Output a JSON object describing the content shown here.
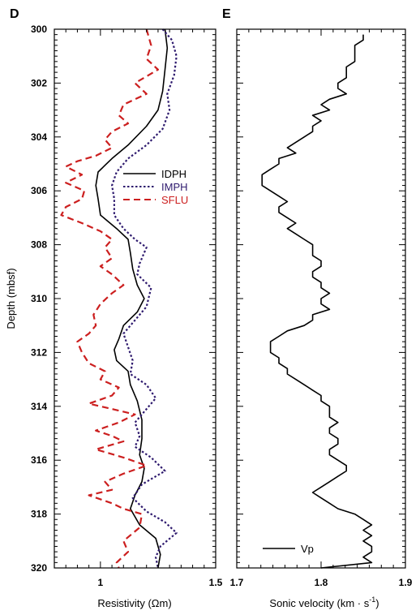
{
  "chart_data": [
    {
      "type": "line",
      "panel_label": "D",
      "xlabel": "Resistivity (Ωm)",
      "ylabel": "Depth (mbsf)",
      "xlim": [
        0.8,
        1.5
      ],
      "ylim": [
        300,
        320
      ],
      "y_inverted": true,
      "x_ticks": [
        1,
        1.5
      ],
      "y_ticks": [
        300,
        302,
        304,
        306,
        308,
        310,
        312,
        314,
        316,
        318,
        320
      ],
      "grid": false,
      "legend_position": "upper-right",
      "series": [
        {
          "name": "IDPH",
          "color": "#000000",
          "style": "solid",
          "points": [
            [
              1.28,
              300.0
            ],
            [
              1.29,
              300.7
            ],
            [
              1.28,
              301.5
            ],
            [
              1.27,
              302.3
            ],
            [
              1.25,
              303.0
            ],
            [
              1.2,
              303.6
            ],
            [
              1.12,
              304.3
            ],
            [
              1.05,
              304.8
            ],
            [
              0.99,
              305.3
            ],
            [
              0.98,
              305.8
            ],
            [
              0.99,
              306.3
            ],
            [
              1.0,
              306.9
            ],
            [
              1.07,
              307.4
            ],
            [
              1.12,
              307.8
            ],
            [
              1.13,
              308.3
            ],
            [
              1.14,
              308.9
            ],
            [
              1.16,
              309.5
            ],
            [
              1.19,
              310.0
            ],
            [
              1.16,
              310.5
            ],
            [
              1.1,
              311.0
            ],
            [
              1.08,
              311.5
            ],
            [
              1.06,
              311.9
            ],
            [
              1.07,
              312.3
            ],
            [
              1.12,
              312.7
            ],
            [
              1.13,
              313.2
            ],
            [
              1.16,
              313.8
            ],
            [
              1.18,
              314.5
            ],
            [
              1.18,
              315.2
            ],
            [
              1.17,
              315.8
            ],
            [
              1.19,
              316.3
            ],
            [
              1.18,
              316.8
            ],
            [
              1.15,
              317.3
            ],
            [
              1.13,
              317.8
            ],
            [
              1.17,
              318.4
            ],
            [
              1.24,
              318.9
            ],
            [
              1.26,
              319.5
            ],
            [
              1.25,
              320.0
            ]
          ]
        },
        {
          "name": "IMPH",
          "color": "#2e1a6e",
          "style": "dotted",
          "points": [
            [
              1.27,
              300.0
            ],
            [
              1.31,
              300.4
            ],
            [
              1.33,
              301.0
            ],
            [
              1.32,
              301.7
            ],
            [
              1.29,
              302.4
            ],
            [
              1.3,
              303.0
            ],
            [
              1.27,
              303.7
            ],
            [
              1.2,
              304.3
            ],
            [
              1.12,
              304.8
            ],
            [
              1.07,
              305.3
            ],
            [
              1.05,
              305.8
            ],
            [
              1.06,
              306.3
            ],
            [
              1.06,
              306.9
            ],
            [
              1.1,
              307.4
            ],
            [
              1.15,
              307.8
            ],
            [
              1.2,
              308.1
            ],
            [
              1.17,
              308.7
            ],
            [
              1.16,
              309.1
            ],
            [
              1.22,
              309.6
            ],
            [
              1.2,
              310.3
            ],
            [
              1.15,
              310.8
            ],
            [
              1.1,
              311.3
            ],
            [
              1.12,
              311.8
            ],
            [
              1.14,
              312.3
            ],
            [
              1.13,
              312.8
            ],
            [
              1.2,
              313.2
            ],
            [
              1.24,
              313.7
            ],
            [
              1.2,
              314.1
            ],
            [
              1.15,
              314.6
            ],
            [
              1.17,
              315.1
            ],
            [
              1.15,
              315.5
            ],
            [
              1.22,
              315.9
            ],
            [
              1.28,
              316.4
            ],
            [
              1.18,
              316.9
            ],
            [
              1.14,
              317.4
            ],
            [
              1.2,
              317.9
            ],
            [
              1.28,
              318.3
            ],
            [
              1.33,
              318.7
            ],
            [
              1.26,
              319.2
            ],
            [
              1.24,
              319.6
            ],
            [
              1.25,
              320.0
            ]
          ]
        },
        {
          "name": "SFLU",
          "color": "#cc1f1f",
          "style": "dashed",
          "points": [
            [
              1.2,
              300.0
            ],
            [
              1.22,
              300.6
            ],
            [
              1.2,
              301.1
            ],
            [
              1.25,
              301.5
            ],
            [
              1.15,
              302.0
            ],
            [
              1.2,
              302.4
            ],
            [
              1.1,
              302.8
            ],
            [
              1.08,
              303.2
            ],
            [
              1.12,
              303.5
            ],
            [
              1.05,
              303.8
            ],
            [
              1.02,
              304.1
            ],
            [
              1.05,
              304.4
            ],
            [
              0.98,
              304.7
            ],
            [
              0.9,
              304.9
            ],
            [
              0.85,
              305.1
            ],
            [
              0.92,
              305.4
            ],
            [
              0.85,
              305.7
            ],
            [
              0.93,
              306.0
            ],
            [
              0.92,
              306.3
            ],
            [
              0.85,
              306.6
            ],
            [
              0.83,
              306.9
            ],
            [
              0.92,
              307.2
            ],
            [
              1.0,
              307.5
            ],
            [
              1.05,
              307.8
            ],
            [
              1.02,
              308.1
            ],
            [
              1.05,
              308.5
            ],
            [
              1.0,
              308.8
            ],
            [
              1.05,
              309.1
            ],
            [
              1.1,
              309.5
            ],
            [
              1.05,
              309.8
            ],
            [
              1.0,
              310.2
            ],
            [
              0.97,
              310.6
            ],
            [
              0.98,
              311.0
            ],
            [
              0.95,
              311.3
            ],
            [
              0.9,
              311.6
            ],
            [
              0.92,
              312.0
            ],
            [
              0.95,
              312.4
            ],
            [
              1.02,
              312.7
            ],
            [
              1.0,
              313.0
            ],
            [
              1.08,
              313.3
            ],
            [
              1.05,
              313.6
            ],
            [
              0.95,
              313.9
            ],
            [
              1.05,
              314.1
            ],
            [
              1.15,
              314.3
            ],
            [
              1.08,
              314.6
            ],
            [
              0.98,
              314.9
            ],
            [
              1.05,
              315.1
            ],
            [
              1.1,
              315.3
            ],
            [
              0.98,
              315.6
            ],
            [
              1.1,
              315.9
            ],
            [
              1.2,
              316.2
            ],
            [
              1.1,
              316.5
            ],
            [
              1.02,
              316.8
            ],
            [
              1.05,
              317.1
            ],
            [
              0.95,
              317.3
            ],
            [
              1.05,
              317.6
            ],
            [
              1.1,
              317.8
            ],
            [
              1.18,
              318.0
            ],
            [
              1.17,
              318.5
            ],
            [
              1.1,
              319.0
            ],
            [
              1.12,
              319.4
            ],
            [
              1.07,
              319.8
            ],
            [
              1.08,
              320.0
            ]
          ]
        }
      ]
    },
    {
      "type": "line",
      "panel_label": "E",
      "xlabel": "Sonic velocity (km · s",
      "xlabel_superscript": "-1",
      "xlabel_close": ")",
      "xlim": [
        1.7,
        1.9
      ],
      "ylim": [
        300,
        320
      ],
      "y_inverted": true,
      "x_ticks": [
        1.7,
        1.8,
        1.9
      ],
      "grid": false,
      "legend_position": "lower-left",
      "series": [
        {
          "name": "Vp",
          "color": "#000000",
          "style": "solid",
          "points": [
            [
              1.85,
              300.2
            ],
            [
              1.85,
              300.4
            ],
            [
              1.84,
              300.6
            ],
            [
              1.84,
              300.8
            ],
            [
              1.84,
              301.0
            ],
            [
              1.84,
              301.2
            ],
            [
              1.83,
              301.4
            ],
            [
              1.83,
              301.6
            ],
            [
              1.83,
              301.8
            ],
            [
              1.82,
              302.0
            ],
            [
              1.82,
              302.2
            ],
            [
              1.83,
              302.4
            ],
            [
              1.81,
              302.6
            ],
            [
              1.8,
              302.8
            ],
            [
              1.81,
              303.0
            ],
            [
              1.79,
              303.2
            ],
            [
              1.8,
              303.4
            ],
            [
              1.79,
              303.6
            ],
            [
              1.79,
              303.8
            ],
            [
              1.78,
              304.0
            ],
            [
              1.77,
              304.2
            ],
            [
              1.76,
              304.4
            ],
            [
              1.77,
              304.6
            ],
            [
              1.75,
              304.8
            ],
            [
              1.75,
              305.0
            ],
            [
              1.74,
              305.2
            ],
            [
              1.73,
              305.4
            ],
            [
              1.73,
              305.6
            ],
            [
              1.73,
              305.8
            ],
            [
              1.74,
              306.0
            ],
            [
              1.75,
              306.2
            ],
            [
              1.76,
              306.4
            ],
            [
              1.75,
              306.6
            ],
            [
              1.75,
              306.8
            ],
            [
              1.76,
              307.0
            ],
            [
              1.77,
              307.2
            ],
            [
              1.76,
              307.4
            ],
            [
              1.77,
              307.6
            ],
            [
              1.78,
              307.8
            ],
            [
              1.79,
              308.0
            ],
            [
              1.79,
              308.2
            ],
            [
              1.79,
              308.4
            ],
            [
              1.8,
              308.6
            ],
            [
              1.8,
              308.8
            ],
            [
              1.79,
              309.0
            ],
            [
              1.79,
              309.2
            ],
            [
              1.8,
              309.4
            ],
            [
              1.8,
              309.6
            ],
            [
              1.81,
              309.8
            ],
            [
              1.8,
              310.0
            ],
            [
              1.8,
              310.2
            ],
            [
              1.81,
              310.4
            ],
            [
              1.79,
              310.6
            ],
            [
              1.79,
              310.8
            ],
            [
              1.78,
              311.0
            ],
            [
              1.76,
              311.2
            ],
            [
              1.75,
              311.4
            ],
            [
              1.74,
              311.6
            ],
            [
              1.74,
              311.8
            ],
            [
              1.74,
              312.0
            ],
            [
              1.75,
              312.2
            ],
            [
              1.75,
              312.4
            ],
            [
              1.76,
              312.6
            ],
            [
              1.76,
              312.8
            ],
            [
              1.77,
              313.0
            ],
            [
              1.78,
              313.2
            ],
            [
              1.79,
              313.4
            ],
            [
              1.8,
              313.6
            ],
            [
              1.8,
              313.8
            ],
            [
              1.81,
              314.0
            ],
            [
              1.81,
              314.2
            ],
            [
              1.81,
              314.4
            ],
            [
              1.82,
              314.6
            ],
            [
              1.81,
              314.8
            ],
            [
              1.81,
              315.0
            ],
            [
              1.82,
              315.2
            ],
            [
              1.82,
              315.4
            ],
            [
              1.81,
              315.6
            ],
            [
              1.81,
              315.8
            ],
            [
              1.82,
              316.0
            ],
            [
              1.83,
              316.2
            ],
            [
              1.83,
              316.4
            ],
            [
              1.82,
              316.6
            ],
            [
              1.81,
              316.8
            ],
            [
              1.8,
              317.0
            ],
            [
              1.79,
              317.2
            ],
            [
              1.8,
              317.4
            ],
            [
              1.81,
              317.6
            ],
            [
              1.82,
              317.8
            ],
            [
              1.84,
              318.0
            ],
            [
              1.85,
              318.2
            ],
            [
              1.86,
              318.4
            ],
            [
              1.85,
              318.6
            ],
            [
              1.86,
              318.8
            ],
            [
              1.85,
              319.0
            ],
            [
              1.86,
              319.2
            ],
            [
              1.86,
              319.4
            ],
            [
              1.85,
              319.6
            ],
            [
              1.86,
              319.8
            ],
            [
              1.8,
              320.0
            ]
          ]
        }
      ]
    }
  ]
}
